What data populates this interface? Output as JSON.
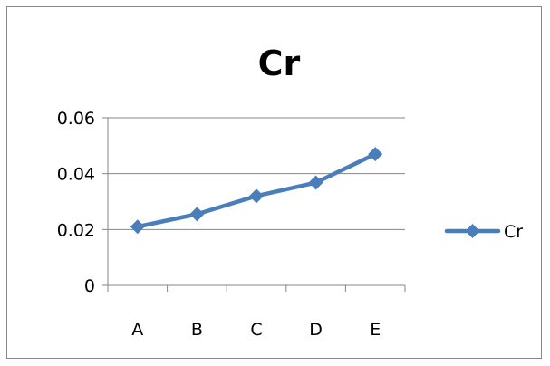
{
  "chart_data": {
    "type": "line",
    "title": "Cr",
    "xlabel": "",
    "ylabel": "",
    "categories": [
      "A",
      "B",
      "C",
      "D",
      "E"
    ],
    "series": [
      {
        "name": "Cr",
        "values": [
          0.021,
          0.0255,
          0.032,
          0.0368,
          0.047
        ],
        "color": "#4a7ebb",
        "marker": "diamond"
      }
    ],
    "ylim": [
      0,
      0.06
    ],
    "yticks": [
      0,
      0.02,
      0.04,
      0.06
    ],
    "ytick_labels": [
      "0",
      "0.02",
      "0.04",
      "0.06"
    ],
    "grid": "horizontal",
    "legend": "right",
    "colors": {
      "gridline": "#868686",
      "axis": "#868686",
      "frame": "#878787"
    }
  }
}
